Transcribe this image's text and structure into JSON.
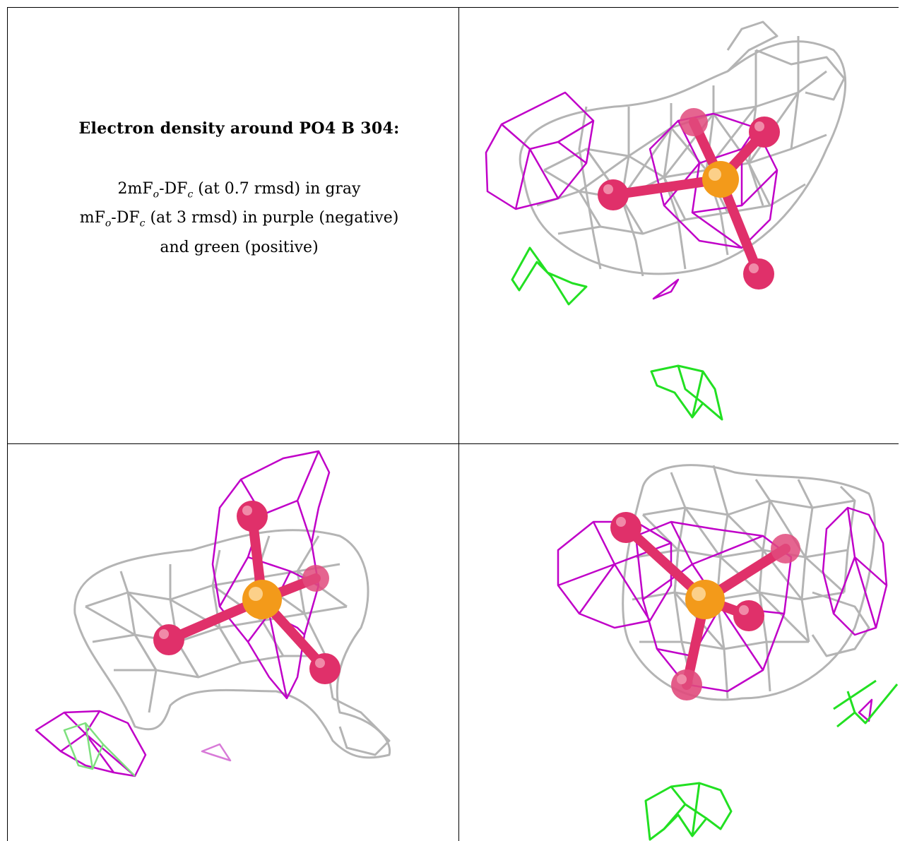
{
  "legend": {
    "title": "Electron density around PO4 B 304:",
    "line1": {
      "a": "2mF",
      "sub1": "o",
      "b": "-DF",
      "sub2": "c",
      "c": " (at 0.7 rmsd) in gray"
    },
    "line2": {
      "a": "mF",
      "sub1": "o",
      "b": "-DF",
      "sub2": "c",
      "c": " (at 3 rmsd) in purple (negative)"
    },
    "line3": "and green (positive)"
  },
  "colors": {
    "gray_mesh": "#b4b4b4",
    "purple_mesh": "#c000c8",
    "green_mesh": "#22e022",
    "oxygen": "#e0306a",
    "phosphorus": "#f39a1a"
  },
  "panels": [
    {
      "id": "view-1",
      "description_icon": "molecule-mesh-icon"
    },
    {
      "id": "view-2",
      "description_icon": "molecule-mesh-icon"
    },
    {
      "id": "view-3",
      "description_icon": "molecule-mesh-icon"
    }
  ]
}
